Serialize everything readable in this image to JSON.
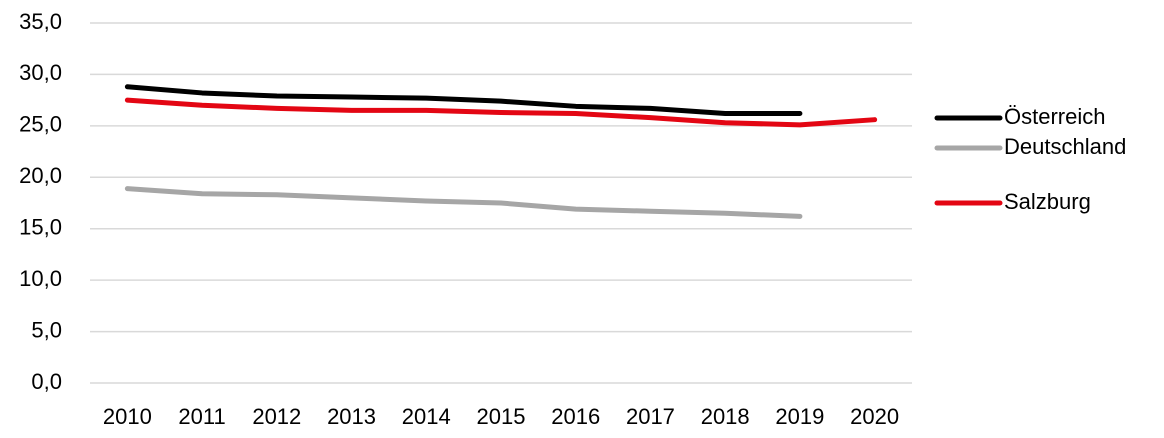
{
  "chart_data": {
    "type": "line",
    "categories": [
      "2010",
      "2011",
      "2012",
      "2013",
      "2014",
      "2015",
      "2016",
      "2017",
      "2018",
      "2019",
      "2020"
    ],
    "series": [
      {
        "name": "Österreich",
        "color": "#000000",
        "values": [
          28.8,
          28.2,
          27.9,
          27.8,
          27.7,
          27.4,
          26.9,
          26.7,
          26.2,
          26.2,
          null
        ]
      },
      {
        "name": "Deutschland",
        "color": "#a6a6a6",
        "values": [
          18.9,
          18.4,
          18.3,
          18.0,
          17.7,
          17.5,
          16.9,
          16.7,
          16.5,
          16.2,
          null
        ]
      },
      {
        "name": "Salzburg",
        "color": "#e30613",
        "values": [
          27.5,
          27.0,
          26.7,
          26.5,
          26.5,
          26.3,
          26.2,
          25.8,
          25.3,
          25.1,
          25.6
        ]
      }
    ],
    "ylim": [
      0,
      35
    ],
    "yticks": [
      {
        "value": 0,
        "label": "0,0"
      },
      {
        "value": 5,
        "label": "5,0"
      },
      {
        "value": 10,
        "label": "10,0"
      },
      {
        "value": 15,
        "label": "15,0"
      },
      {
        "value": 20,
        "label": "20,0"
      },
      {
        "value": 25,
        "label": "25,0"
      },
      {
        "value": 30,
        "label": "30,0"
      },
      {
        "value": 35,
        "label": "35,0"
      }
    ],
    "grid": true,
    "legend": "right"
  }
}
